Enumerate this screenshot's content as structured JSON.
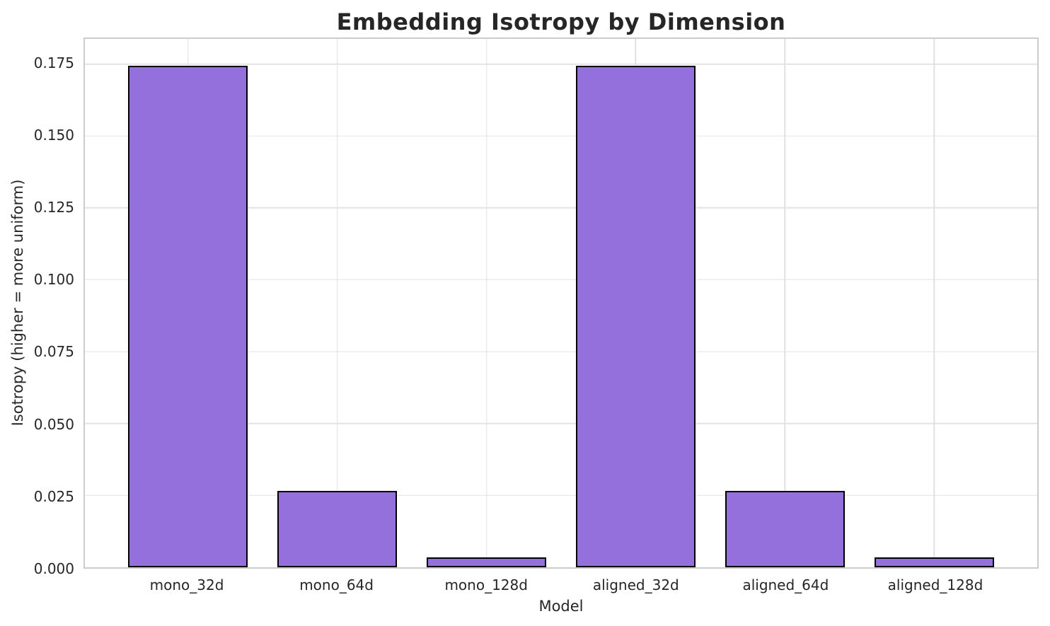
{
  "chart_data": {
    "type": "bar",
    "title": "Embedding Isotropy by Dimension",
    "xlabel": "Model",
    "ylabel": "Isotropy (higher = more uniform)",
    "categories": [
      "mono_32d",
      "mono_64d",
      "mono_128d",
      "aligned_32d",
      "aligned_64d",
      "aligned_128d"
    ],
    "values": [
      0.1745,
      0.0265,
      0.0034,
      0.1745,
      0.0265,
      0.0034
    ],
    "yticks": [
      0.0,
      0.025,
      0.05,
      0.075,
      0.1,
      0.125,
      0.15,
      0.175
    ],
    "ytick_labels": [
      "0.000",
      "0.025",
      "0.050",
      "0.075",
      "0.100",
      "0.125",
      "0.150",
      "0.175"
    ],
    "ylim": [
      0,
      0.18375
    ],
    "xlim": [
      -0.69,
      5.69
    ],
    "bar_width": 0.8,
    "grid": "both",
    "legend_position": "none",
    "colors": {
      "bar_fill": "#9370DB",
      "bar_edge": "#000000",
      "grid": "#e4e4e4",
      "spine": "#cccccc",
      "text": "#262626",
      "background": "#ffffff"
    }
  }
}
